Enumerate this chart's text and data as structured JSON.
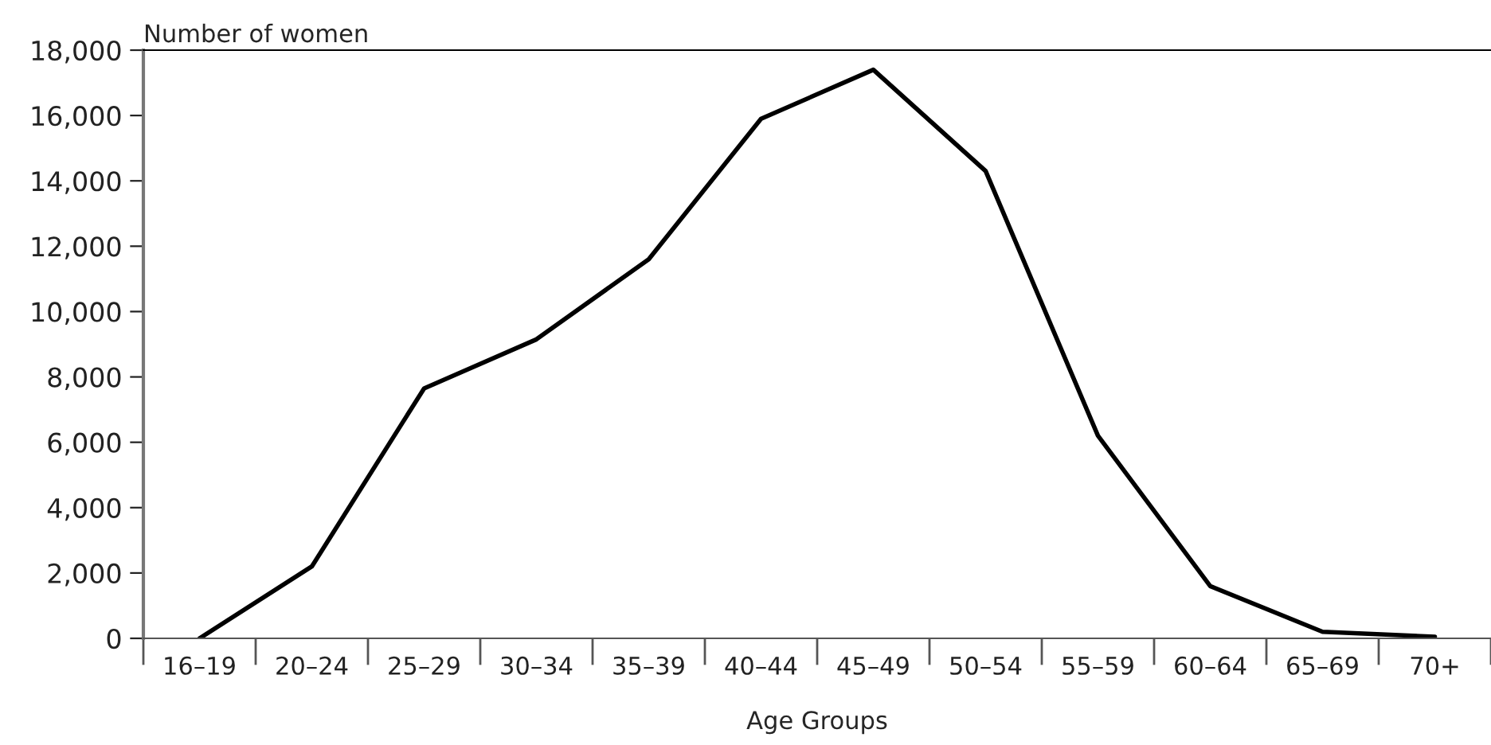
{
  "chart_data": {
    "type": "line",
    "ylabel": "Number of women",
    "xlabel": "Age Groups",
    "categories": [
      "16–19",
      "20–24",
      "25–29",
      "30–34",
      "35–39",
      "40–44",
      "45–49",
      "50–54",
      "55–59",
      "60–64",
      "65–69",
      "70+"
    ],
    "series": [
      {
        "color": "#000000",
        "values": [
          0,
          2200,
          7650,
          9150,
          11600,
          15900,
          17400,
          14300,
          6200,
          1600,
          200,
          50
        ]
      }
    ],
    "ylim": [
      0,
      18000
    ],
    "yticks": [
      {
        "value": 0,
        "label": "0"
      },
      {
        "value": 2000,
        "label": "2,000"
      },
      {
        "value": 4000,
        "label": "4,000"
      },
      {
        "value": 6000,
        "label": "6,000"
      },
      {
        "value": 8000,
        "label": "8,000"
      },
      {
        "value": 10000,
        "label": "10,000"
      },
      {
        "value": 12000,
        "label": "12,000"
      },
      {
        "value": 14000,
        "label": "14,000"
      },
      {
        "value": 16000,
        "label": "16,000"
      },
      {
        "value": 18000,
        "label": "18,000"
      }
    ],
    "grid": false,
    "legend": false,
    "marker": "none",
    "line_style": "solid"
  }
}
